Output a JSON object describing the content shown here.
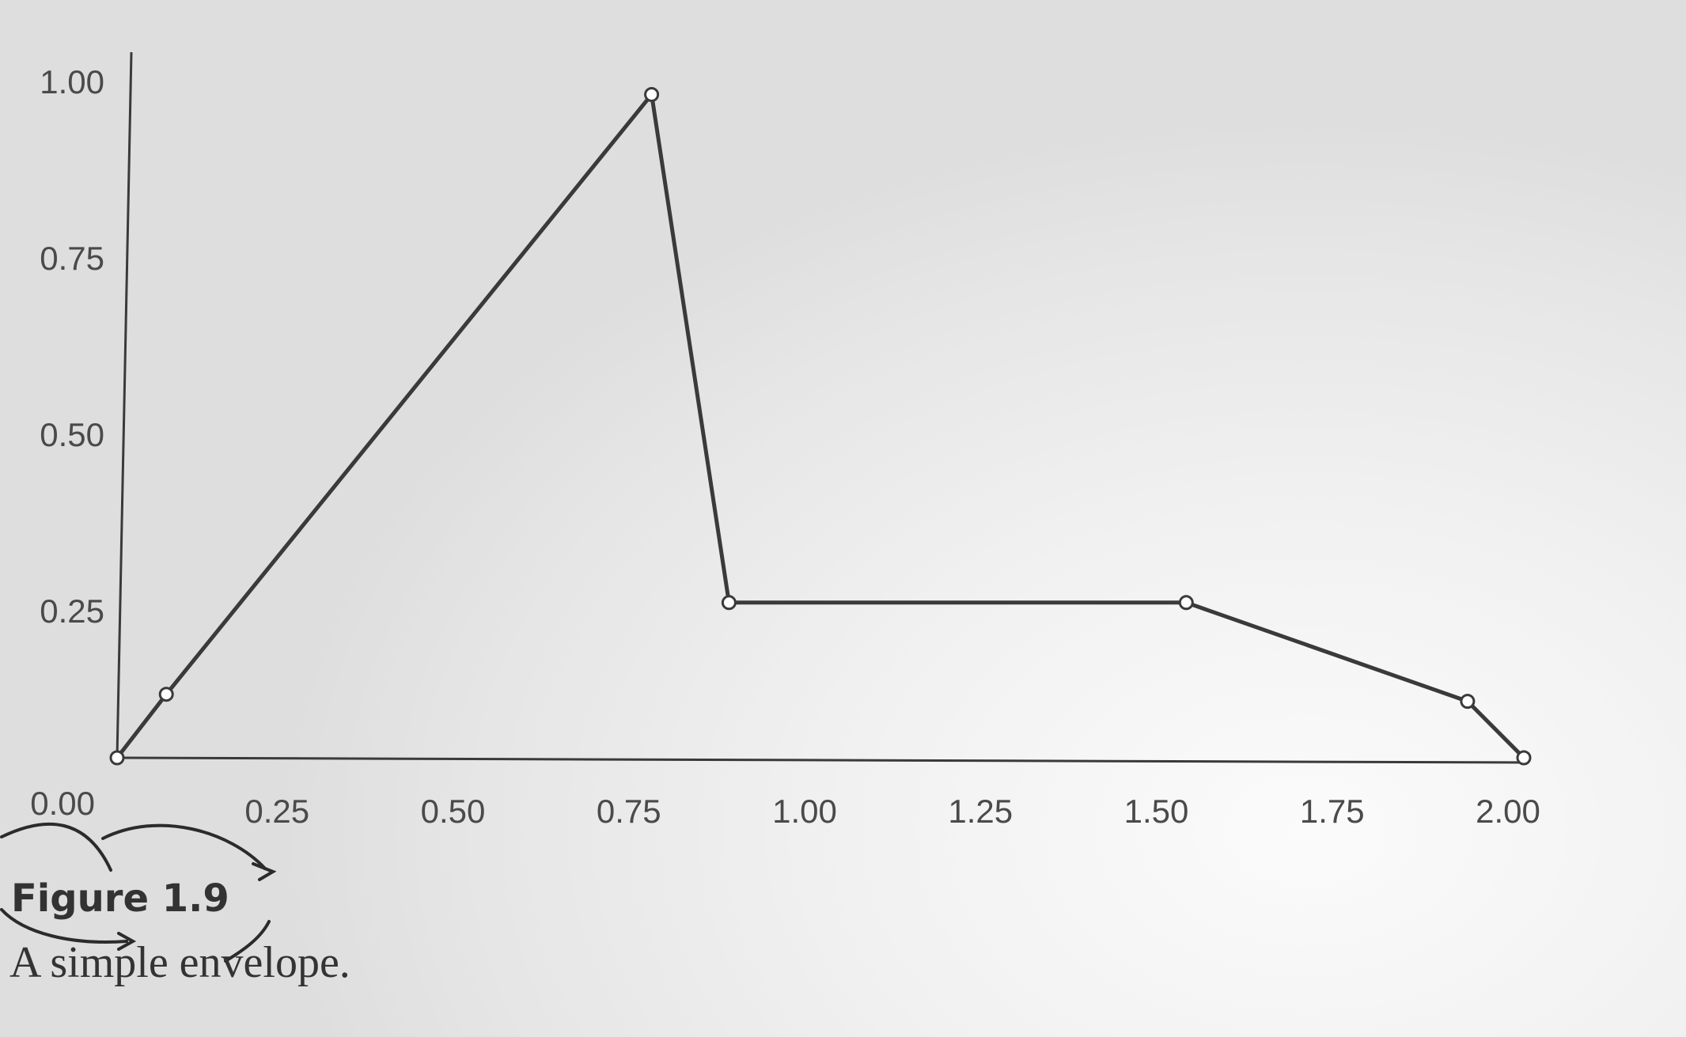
{
  "chart_data": {
    "type": "line",
    "x_ticks": [
      "0.25",
      "0.50",
      "0.75",
      "1.00",
      "1.25",
      "1.50",
      "1.75",
      "2.00"
    ],
    "y_ticks": [
      "0.00",
      "0.25",
      "0.50",
      "0.75",
      "1.00"
    ],
    "xlim": [
      0,
      2.0
    ],
    "ylim": [
      0,
      1.0
    ],
    "grid": false,
    "series": [
      {
        "points": [
          {
            "x": 0.0,
            "y": 0.0
          },
          {
            "x": 0.07,
            "y": 0.09
          },
          {
            "x": 0.76,
            "y": 0.94
          },
          {
            "x": 0.87,
            "y": 0.22
          },
          {
            "x": 1.52,
            "y": 0.22
          },
          {
            "x": 1.92,
            "y": 0.08
          },
          {
            "x": 2.0,
            "y": 0.0
          }
        ]
      }
    ]
  },
  "figure": {
    "label": "Figure 1.9",
    "caption": "A simple envelope."
  },
  "colors": {
    "line": "#3a3a3a",
    "text": "#333333"
  }
}
